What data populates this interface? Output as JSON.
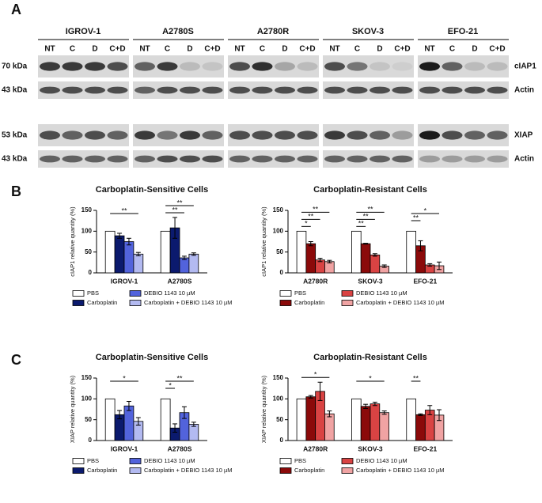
{
  "panels": {
    "a": "A",
    "b": "B",
    "c": "C"
  },
  "blot": {
    "groups": [
      "IGROV-1",
      "A2780S",
      "A2780R",
      "SKOV-3",
      "EFO-21"
    ],
    "lanes": [
      "NT",
      "C",
      "D",
      "C+D"
    ],
    "rows": [
      {
        "size": "70 kDa",
        "protein": "cIAP1"
      },
      {
        "size": "43 kDa",
        "protein": "Actin"
      },
      {
        "size": "53 kDa",
        "protein": "XIAP"
      },
      {
        "size": "43 kDa",
        "protein": "Actin"
      }
    ]
  },
  "chart_data": [
    {
      "type": "bar",
      "title": "Carboplatin-Sensitive Cells",
      "ylabel": "cIAP1 relative quantity (%)",
      "categories": [
        "IGROV-1",
        "A2780S"
      ],
      "ylim": [
        0,
        150
      ],
      "yticks": [
        0,
        50,
        100,
        150
      ],
      "legend": "bottom",
      "series": [
        {
          "name": "PBS",
          "color": "#ffffff",
          "values": [
            100,
            100
          ],
          "errors": [
            0,
            0
          ],
          "significance": [
            null,
            null
          ]
        },
        {
          "name": "Carboplatin",
          "color": "#0b1a6e",
          "values": [
            89,
            108
          ],
          "errors": [
            6,
            25
          ],
          "significance": [
            null,
            null
          ]
        },
        {
          "name": "DEBIO 1143 10 µM",
          "color": "#5263dc",
          "values": [
            75,
            36
          ],
          "errors": [
            8,
            4
          ],
          "significance": [
            null,
            "**"
          ]
        },
        {
          "name": "Carboplatin + DEBIO 1143 10 µM",
          "color": "#b3baf1",
          "values": [
            45,
            45
          ],
          "errors": [
            4,
            3
          ],
          "significance": [
            "**",
            "**"
          ]
        }
      ]
    },
    {
      "type": "bar",
      "title": "Carboplatin-Resistant Cells",
      "ylabel": "cIAP1 relative quantity (%)",
      "categories": [
        "A2780R",
        "SKOV-3",
        "EFO-21"
      ],
      "ylim": [
        0,
        150
      ],
      "yticks": [
        0,
        50,
        100,
        150
      ],
      "legend": "bottom",
      "series": [
        {
          "name": "PBS",
          "color": "#ffffff",
          "values": [
            100,
            100,
            100
          ],
          "errors": [
            0,
            0,
            0
          ],
          "significance": [
            null,
            null,
            null
          ]
        },
        {
          "name": "Carboplatin",
          "color": "#8b0a0a",
          "values": [
            70,
            70,
            65
          ],
          "errors": [
            5,
            1,
            12
          ],
          "significance": [
            "*",
            "**",
            "**"
          ]
        },
        {
          "name": "DEBIO 1143 10 µM",
          "color": "#d94343",
          "values": [
            31,
            43,
            19
          ],
          "errors": [
            4,
            3,
            3
          ],
          "significance": [
            "**",
            "**",
            null
          ]
        },
        {
          "name": "Carboplatin + DEBIO 1143 10 µM",
          "color": "#f0a3a3",
          "values": [
            27,
            16,
            17
          ],
          "errors": [
            3,
            3,
            9
          ],
          "significance": [
            "**",
            "**",
            "*"
          ]
        }
      ]
    },
    {
      "type": "bar",
      "title": "Carboplatin-Sensitive Cells",
      "ylabel": "XIAP relative quantity (%)",
      "categories": [
        "IGROV-1",
        "A2780S"
      ],
      "ylim": [
        0,
        150
      ],
      "yticks": [
        0,
        50,
        100,
        150
      ],
      "legend": "bottom",
      "series": [
        {
          "name": "PBS",
          "color": "#ffffff",
          "values": [
            100,
            100
          ],
          "errors": [
            0,
            0
          ],
          "significance": [
            null,
            null
          ]
        },
        {
          "name": "Carboplatin",
          "color": "#0b1a6e",
          "values": [
            62,
            30
          ],
          "errors": [
            10,
            10
          ],
          "significance": [
            null,
            "*"
          ]
        },
        {
          "name": "DEBIO 1143 10 µM",
          "color": "#5263dc",
          "values": [
            83,
            67
          ],
          "errors": [
            11,
            14
          ],
          "significance": [
            null,
            null
          ]
        },
        {
          "name": "Carboplatin + DEBIO 1143 10 µM",
          "color": "#b3baf1",
          "values": [
            46,
            39
          ],
          "errors": [
            9,
            5
          ],
          "significance": [
            "*",
            "**"
          ]
        }
      ]
    },
    {
      "type": "bar",
      "title": "Carboplatin-Resistant Cells",
      "ylabel": "XIAP relative quantity (%)",
      "categories": [
        "A2780R",
        "SKOV-3",
        "EFO-21"
      ],
      "ylim": [
        0,
        150
      ],
      "yticks": [
        0,
        50,
        100,
        150
      ],
      "legend": "bottom",
      "series": [
        {
          "name": "PBS",
          "color": "#ffffff",
          "values": [
            100,
            100,
            100
          ],
          "errors": [
            0,
            0,
            0
          ],
          "significance": [
            null,
            null,
            null
          ]
        },
        {
          "name": "Carboplatin",
          "color": "#8b0a0a",
          "values": [
            105,
            82,
            62
          ],
          "errors": [
            3,
            5,
            2
          ],
          "significance": [
            null,
            null,
            "**"
          ]
        },
        {
          "name": "DEBIO 1143 10 µM",
          "color": "#d94343",
          "values": [
            118,
            88,
            73
          ],
          "errors": [
            22,
            4,
            11
          ],
          "significance": [
            null,
            null,
            null
          ]
        },
        {
          "name": "Carboplatin + DEBIO 1143 10 µM",
          "color": "#f0a3a3",
          "values": [
            64,
            67,
            61
          ],
          "errors": [
            7,
            4,
            13
          ],
          "significance": [
            "*",
            "*",
            null
          ]
        }
      ]
    }
  ]
}
